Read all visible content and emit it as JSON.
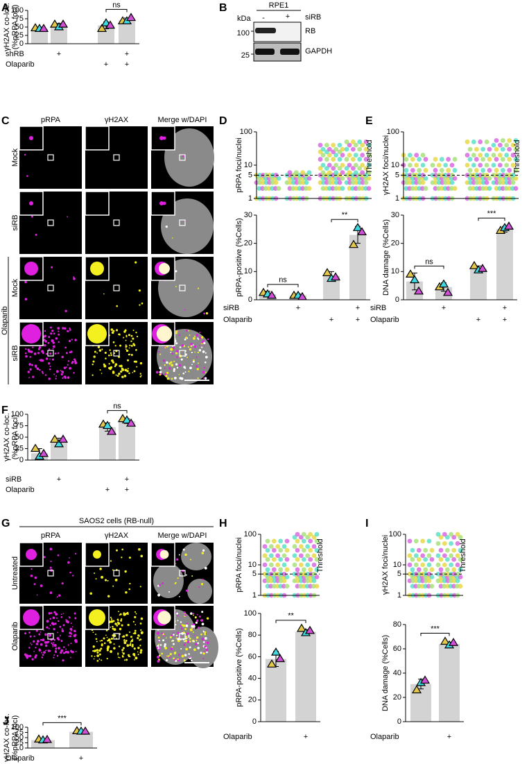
{
  "chart_data": [
    {
      "type": "bar",
      "panel": "A",
      "ylabel": [
        "γH2AX co-loc.",
        "(%pRPA foci)"
      ],
      "ylim": [
        0,
        100
      ],
      "yticks": [
        0,
        25,
        50,
        75,
        100
      ],
      "color": "#d3d3d3",
      "values": [
        45,
        55,
        55,
        70
      ],
      "errors": [
        5,
        6,
        10,
        7
      ],
      "replicates": [
        {
          "color": "#e3c84b",
          "values": [
            47,
            58,
            45,
            68
          ]
        },
        {
          "color": "#3fd9e2",
          "values": [
            45,
            50,
            62,
            68
          ]
        },
        {
          "color": "#d04fd6",
          "values": [
            45,
            58,
            55,
            78
          ]
        }
      ],
      "rows": [
        {
          "label": "shRB",
          "marks": [
            null,
            "+",
            null,
            "+"
          ]
        },
        {
          "label": "Olaparib",
          "marks": [
            null,
            null,
            "+",
            "+"
          ]
        }
      ],
      "significance": [
        {
          "from": 2,
          "to": 3,
          "label": "ns"
        }
      ]
    },
    {
      "type": "dot",
      "panel": "D",
      "ylabel": [
        "pRPA foci/nuclei"
      ],
      "log": true,
      "ylim": [
        1,
        100
      ],
      "yticks": [
        1,
        5,
        10,
        100
      ],
      "threshold": 5,
      "threshold_label": "Threshold",
      "dot_colors": [
        "#e6d84a",
        "#5ee0c8",
        "#d86ae0",
        "#a8e07a"
      ],
      "groups": [
        [
          1,
          2,
          3,
          4,
          5
        ],
        [
          1,
          2,
          3,
          4,
          5,
          6
        ],
        [
          1,
          2,
          3,
          4,
          5,
          6,
          8,
          10,
          15,
          20,
          25,
          30,
          40
        ],
        [
          1,
          2,
          3,
          4,
          5,
          6,
          8,
          10,
          15,
          20,
          30,
          40,
          50
        ]
      ]
    },
    {
      "type": "bar",
      "ylabel": [
        "pRPA-positive (%Cells)"
      ],
      "ylim": [
        0,
        30
      ],
      "yticks": [
        0,
        10,
        20,
        30
      ],
      "color": "#d3d3d3",
      "values": [
        2,
        1.5,
        8.5,
        23
      ],
      "errors": [
        1,
        0.5,
        1.5,
        3
      ],
      "replicates": [
        {
          "color": "#e3c84b",
          "values": [
            2.5,
            1.5,
            9.5,
            19.5
          ]
        },
        {
          "color": "#3fd9e2",
          "values": [
            2,
            1.5,
            7.5,
            25.5
          ]
        },
        {
          "color": "#d04fd6",
          "values": [
            1.5,
            1,
            8,
            24
          ]
        }
      ],
      "rows": [
        {
          "label": "siRB",
          "marks": [
            null,
            "+",
            null,
            "+"
          ]
        },
        {
          "label": "Olaparib",
          "marks": [
            null,
            null,
            "+",
            "+"
          ]
        }
      ],
      "significance": [
        {
          "from": 0,
          "to": 1,
          "label": "ns"
        },
        {
          "from": 2,
          "to": 3,
          "label": "**"
        }
      ]
    },
    {
      "type": "dot",
      "panel": "E",
      "ylabel": [
        "γH2AX foci/nuclei"
      ],
      "log": true,
      "ylim": [
        1,
        100
      ],
      "yticks": [
        1,
        5,
        10,
        100
      ],
      "threshold": 5,
      "threshold_label": "Threshold",
      "dot_colors": [
        "#e6d84a",
        "#5ee0c8",
        "#d86ae0",
        "#a8e07a"
      ],
      "groups": [
        [
          1,
          2,
          3,
          4,
          5,
          7,
          10,
          15,
          20
        ],
        [
          1,
          2,
          3,
          4,
          5,
          7,
          10,
          15
        ],
        [
          1,
          2,
          3,
          4,
          5,
          7,
          10,
          15,
          20,
          30,
          50
        ],
        [
          1,
          2,
          3,
          4,
          5,
          7,
          10,
          15,
          20,
          30,
          40,
          55
        ]
      ]
    },
    {
      "type": "bar",
      "ylabel": [
        "DNA damage (%Cells)"
      ],
      "ylim": [
        0,
        30
      ],
      "yticks": [
        0,
        10,
        20,
        30
      ],
      "color": "#d3d3d3",
      "values": [
        6.5,
        4.5,
        11,
        25
      ],
      "errors": [
        3,
        1.5,
        1,
        1
      ],
      "replicates": [
        {
          "color": "#e3c84b",
          "values": [
            9,
            4.5,
            12,
            24.5
          ]
        },
        {
          "color": "#3fd9e2",
          "values": [
            7,
            5.5,
            10.5,
            25.5
          ]
        },
        {
          "color": "#d04fd6",
          "values": [
            3,
            2.5,
            11,
            26
          ]
        }
      ],
      "rows": [
        {
          "label": "siRB",
          "marks": [
            null,
            "+",
            null,
            "+"
          ]
        },
        {
          "label": "Olaparib",
          "marks": [
            null,
            null,
            "+",
            "+"
          ]
        }
      ],
      "significance": [
        {
          "from": 0,
          "to": 1,
          "label": "ns"
        },
        {
          "from": 2,
          "to": 3,
          "label": "***"
        }
      ]
    },
    {
      "type": "bar",
      "panel": "F",
      "ylabel": [
        "γH2AX co-loc.",
        "(%pRPA foci)"
      ],
      "ylim": [
        0,
        100
      ],
      "yticks": [
        0,
        25,
        50,
        75,
        100
      ],
      "color": "#d3d3d3",
      "values": [
        15,
        42,
        72,
        85
      ],
      "errors": [
        10,
        6,
        9,
        5
      ],
      "replicates": [
        {
          "color": "#e3c84b",
          "values": [
            25,
            45,
            78,
            90
          ]
        },
        {
          "color": "#3fd9e2",
          "values": [
            8,
            35,
            75,
            87
          ]
        },
        {
          "color": "#d04fd6",
          "values": [
            14,
            45,
            62,
            80
          ]
        }
      ],
      "rows": [
        {
          "label": "siRB",
          "marks": [
            null,
            "+",
            null,
            "+"
          ]
        },
        {
          "label": "Olaparib",
          "marks": [
            null,
            null,
            "+",
            "+"
          ]
        }
      ],
      "significance": [
        {
          "from": 2,
          "to": 3,
          "label": "ns"
        }
      ]
    },
    {
      "type": "dot",
      "panel": "H",
      "ylabel": [
        "pRPA foci/nuclei"
      ],
      "log": true,
      "ylim": [
        1,
        100
      ],
      "yticks": [
        1,
        5,
        10,
        100
      ],
      "threshold": 5,
      "threshold_label": "Threshold",
      "dot_colors": [
        "#e6d84a",
        "#5ee0c8",
        "#d86ae0",
        "#a8e07a"
      ],
      "groups": [
        [
          1,
          2,
          3,
          4,
          5,
          7,
          10,
          15,
          20,
          30,
          40,
          60
        ],
        [
          1,
          2,
          3,
          4,
          5,
          7,
          10,
          15,
          20,
          30,
          40,
          60,
          80,
          100
        ]
      ]
    },
    {
      "type": "bar",
      "ylabel": [
        "pRPA-positive (%Cells)"
      ],
      "ylim": [
        0,
        100
      ],
      "yticks": [
        0,
        20,
        40,
        60,
        80,
        100
      ],
      "color": "#d3d3d3",
      "values": [
        58,
        83
      ],
      "errors": [
        7,
        2
      ],
      "replicates": [
        {
          "color": "#e3c84b",
          "values": [
            53,
            86
          ]
        },
        {
          "color": "#3fd9e2",
          "values": [
            64,
            82
          ]
        },
        {
          "color": "#d04fd6",
          "values": [
            58,
            84
          ]
        }
      ],
      "rows": [
        {
          "label": "Olaparib",
          "marks": [
            null,
            "+"
          ]
        }
      ],
      "significance": [
        {
          "from": 0,
          "to": 1,
          "label": "**"
        }
      ]
    },
    {
      "type": "dot",
      "panel": "I",
      "ylabel": [
        "γH2AX foci/nuclei"
      ],
      "log": true,
      "ylim": [
        1,
        100
      ],
      "yticks": [
        1,
        5,
        10,
        100
      ],
      "threshold": 5,
      "threshold_label": "Threshold",
      "dot_colors": [
        "#e6d84a",
        "#5ee0c8",
        "#d86ae0",
        "#a8e07a"
      ],
      "groups": [
        [
          1,
          2,
          3,
          4,
          5,
          7,
          10,
          15,
          20,
          30,
          60
        ],
        [
          1,
          2,
          3,
          4,
          5,
          7,
          10,
          15,
          20,
          30,
          50,
          80,
          100
        ]
      ]
    },
    {
      "type": "bar",
      "ylabel": [
        "DNA damage (%Cells)"
      ],
      "ylim": [
        0,
        80
      ],
      "yticks": [
        0,
        20,
        40,
        60,
        80
      ],
      "color": "#d3d3d3",
      "values": [
        31,
        64
      ],
      "errors": [
        4,
        1.5
      ],
      "replicates": [
        {
          "color": "#e3c84b",
          "values": [
            26,
            66
          ]
        },
        {
          "color": "#3fd9e2",
          "values": [
            32,
            63
          ]
        },
        {
          "color": "#d04fd6",
          "values": [
            34,
            65
          ]
        }
      ],
      "rows": [
        {
          "label": "Olaparib",
          "marks": [
            null,
            "+"
          ]
        }
      ],
      "significance": [
        {
          "from": 0,
          "to": 1,
          "label": "***"
        }
      ]
    },
    {
      "type": "bar",
      "panel": "J",
      "ylabel": [
        "γH2AX co-loc.",
        "(%pRPA foci)"
      ],
      "ylim": [
        0,
        100
      ],
      "yticks": [
        0,
        25,
        50,
        75,
        100
      ],
      "color": "#d3d3d3",
      "values": [
        38,
        78
      ],
      "errors": [
        3,
        3
      ],
      "replicates": [
        {
          "color": "#e3c84b",
          "values": [
            42,
            82
          ]
        },
        {
          "color": "#3fd9e2",
          "values": [
            38,
            80
          ]
        },
        {
          "color": "#d04fd6",
          "values": [
            40,
            80
          ]
        }
      ],
      "rows": [
        {
          "label": "Olaparib",
          "marks": [
            null,
            "+"
          ]
        }
      ],
      "significance": [
        {
          "from": 0,
          "to": 1,
          "label": "***"
        }
      ]
    }
  ],
  "blot": {
    "panel": "B",
    "title": "RPE1",
    "unit": "kDa",
    "lane_label": "siRB",
    "lanes": [
      "-",
      "+"
    ],
    "markers": [
      100,
      25
    ],
    "bands": [
      "RB",
      "GAPDH"
    ]
  },
  "micrographs": [
    {
      "panel": "C",
      "columns": [
        "pRPA",
        "γH2AX",
        "Merge w/DAPI"
      ],
      "rows": [
        "Mock",
        "siRB",
        "Mock",
        "siRB"
      ],
      "group": "Olaparib"
    },
    {
      "panel": "G",
      "title": "SAOS2 cells (RB-null)",
      "columns": [
        "pRPA",
        "γH2AX",
        "Merge w/DAPI"
      ],
      "rows": [
        "Untreated",
        "Olaparib"
      ]
    }
  ]
}
